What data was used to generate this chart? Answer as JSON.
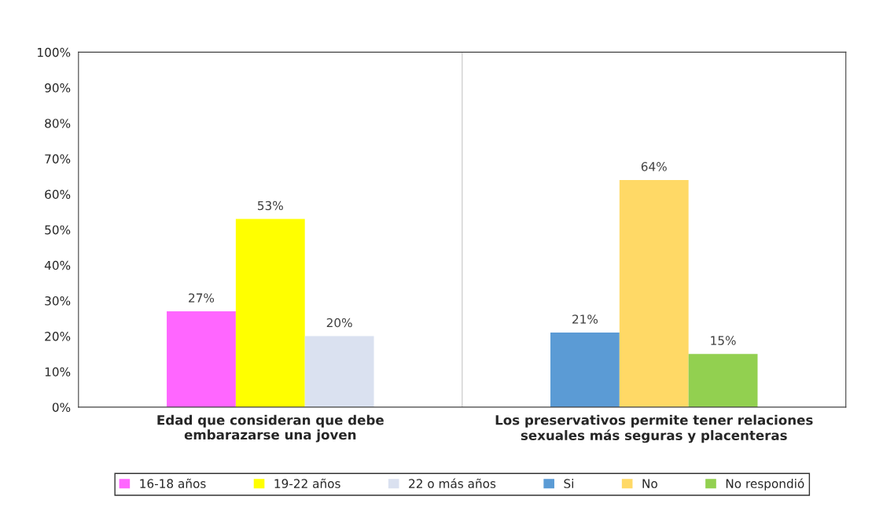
{
  "chart_data": {
    "type": "bar",
    "categories": [
      "Edad que consideran que debe\nembarazarse una joven",
      "Los preservativos permite tener relaciones\nsexuales más seguras y placenteras"
    ],
    "series": [
      {
        "name": "16-18 años",
        "color": "#ff66ff",
        "values": [
          27,
          null
        ]
      },
      {
        "name": "19-22 años",
        "color": "#ffff00",
        "values": [
          53,
          null
        ]
      },
      {
        "name": "22 o más años",
        "color": "#dae1f0",
        "values": [
          20,
          null
        ]
      },
      {
        "name": "Si",
        "color": "#5b9bd5",
        "values": [
          null,
          21
        ]
      },
      {
        "name": "No",
        "color": "#ffd966",
        "values": [
          null,
          64
        ]
      },
      {
        "name": "No respondió",
        "color": "#92d050",
        "values": [
          null,
          15
        ]
      }
    ],
    "value_labels": [
      "27%",
      "53%",
      "20%",
      "21%",
      "64%",
      "15%"
    ],
    "ylim": [
      0,
      100
    ],
    "yticks": [
      {
        "value": 0,
        "label": "0%"
      },
      {
        "value": 10,
        "label": "10%"
      },
      {
        "value": 20,
        "label": "20%"
      },
      {
        "value": 30,
        "label": "30%"
      },
      {
        "value": 40,
        "label": "40%"
      },
      {
        "value": 50,
        "label": "50%"
      },
      {
        "value": 60,
        "label": "60%"
      },
      {
        "value": 70,
        "label": "70%"
      },
      {
        "value": 80,
        "label": "80%"
      },
      {
        "value": 90,
        "label": "90%"
      },
      {
        "value": 100,
        "label": "100%"
      }
    ],
    "grid": false,
    "legend": "bottom"
  }
}
